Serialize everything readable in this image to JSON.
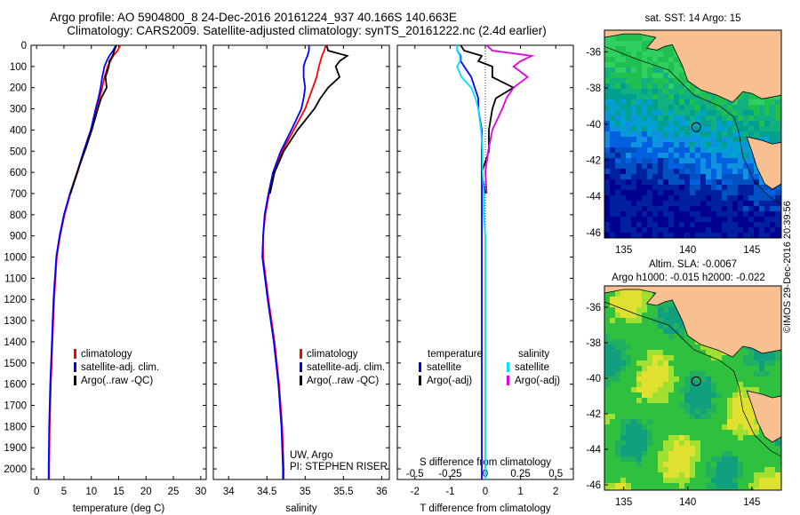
{
  "header": {
    "line1": "Argo profile: AO 5904800_8 24-Dec-2016 20161224_937 40.166S 140.663E",
    "line2": "Climatology: CARS2009. Satellite-adjusted climatology: synTS_20161222.nc (2.4d earlier)"
  },
  "watermark": "©IMOS 29-Dec-2016 20:39:56",
  "colors": {
    "climatology": "#ff0000",
    "satellite": "#0000ff",
    "argo": "#000000",
    "sal_satellite": "#00e0ff",
    "sal_argo": "#e000e0",
    "land": "#f8c090",
    "frame": "#000000"
  },
  "chart_data": [
    {
      "type": "line",
      "panel": "temperature",
      "xlabel": "temperature (deg C)",
      "ylabel": "",
      "xlim": [
        -1,
        31
      ],
      "ylim": [
        2050,
        0
      ],
      "xticks": [
        0,
        5,
        10,
        15,
        20,
        25,
        30
      ],
      "yticks": [
        0,
        100,
        200,
        300,
        400,
        500,
        600,
        700,
        800,
        900,
        1000,
        1100,
        1200,
        1300,
        1400,
        1500,
        1600,
        1700,
        1800,
        1900,
        2000
      ],
      "legend": [
        "climatology",
        "satellite-adj. clim.",
        "Argo(..raw -QC)"
      ],
      "depth": [
        0,
        25,
        50,
        75,
        100,
        150,
        200,
        250,
        300,
        400,
        500,
        600,
        700,
        800,
        900,
        1000,
        1200,
        1400,
        1600,
        1800,
        2000,
        2050
      ],
      "series": [
        {
          "name": "climatology",
          "values": [
            15.3,
            14.8,
            14.0,
            13.5,
            13.0,
            12.4,
            12.0,
            11.5,
            11.0,
            10.0,
            8.7,
            7.5,
            6.2,
            5.1,
            4.3,
            3.7,
            3.2,
            2.9,
            2.6,
            2.4,
            2.3,
            2.3
          ]
        },
        {
          "name": "satellite-adj. clim.",
          "values": [
            14.5,
            14.0,
            13.3,
            12.8,
            12.4,
            12.0,
            11.7,
            11.3,
            10.8,
            9.9,
            8.6,
            7.4,
            6.1,
            5.0,
            4.2,
            3.6,
            3.1,
            2.8,
            2.5,
            2.3,
            2.2,
            2.2
          ]
        },
        {
          "name": "Argo(..raw -QC)",
          "values": [
            14.6,
            14.2,
            13.9,
            13.3,
            13.2,
            12.6,
            12.8,
            11.8,
            11.2,
            10.1,
            8.8,
            7.4,
            6.2,
            null,
            null,
            null,
            null,
            null,
            null,
            null,
            null,
            null
          ]
        }
      ]
    },
    {
      "type": "line",
      "panel": "salinity",
      "xlabel": "salinity",
      "xlim": [
        33.8,
        36.1
      ],
      "ylim": [
        2050,
        0
      ],
      "xticks": [
        34,
        34.5,
        35,
        35.5,
        36
      ],
      "legend": [
        "climatology",
        "satellite-adj. clim.",
        "Argo(..raw -QC)"
      ],
      "annotation": [
        "UW, Argo",
        "PI: STEPHEN RISER"
      ],
      "depth": [
        0,
        25,
        50,
        75,
        100,
        150,
        200,
        250,
        300,
        400,
        500,
        600,
        700,
        800,
        900,
        1000,
        1200,
        1400,
        1600,
        1800,
        2000,
        2050
      ],
      "series": [
        {
          "name": "climatology",
          "values": [
            35.27,
            35.25,
            35.22,
            35.2,
            35.18,
            35.15,
            35.1,
            35.05,
            35.0,
            34.85,
            34.7,
            34.6,
            34.53,
            34.48,
            34.45,
            34.45,
            34.52,
            34.6,
            34.66,
            34.7,
            34.72,
            34.72
          ]
        },
        {
          "name": "satellite-adj. clim.",
          "values": [
            35.05,
            35.05,
            35.03,
            35.0,
            34.98,
            34.98,
            35.0,
            34.98,
            34.95,
            34.82,
            34.68,
            34.58,
            34.52,
            34.47,
            34.45,
            34.44,
            34.51,
            34.59,
            34.65,
            34.69,
            34.71,
            34.71
          ]
        },
        {
          "name": "Argo(..raw -QC)",
          "values": [
            35.28,
            35.3,
            35.55,
            35.45,
            35.4,
            35.45,
            35.3,
            35.2,
            35.12,
            34.9,
            34.72,
            34.6,
            34.54,
            null,
            null,
            null,
            null,
            null,
            null,
            null,
            null,
            null
          ]
        }
      ]
    },
    {
      "type": "line",
      "panel": "difference",
      "xlabel": "T difference from climatology",
      "x2label": "S difference from climatology",
      "xlim": [
        -2.5,
        2.5
      ],
      "x2lim": [
        -0.625,
        0.625
      ],
      "ylim": [
        2050,
        0
      ],
      "xticks": [
        -2,
        -1,
        0,
        1,
        2
      ],
      "x2ticks": [
        -0.5,
        -0.25,
        0,
        0.25,
        0.5
      ],
      "legend_headers": [
        "temperature",
        "salinity"
      ],
      "legend": [
        "satellite",
        "Argo(-adj)",
        "satellite",
        "Argo(-adj)"
      ],
      "depth": [
        0,
        25,
        50,
        75,
        100,
        150,
        200,
        250,
        300,
        400,
        500,
        600,
        700,
        800,
        900,
        1000,
        1200,
        1400,
        1600,
        1800,
        2000,
        2050
      ],
      "series": [
        {
          "name": "temperature satellite",
          "values": [
            -0.8,
            -0.8,
            -0.7,
            -0.7,
            -0.6,
            -0.4,
            -0.3,
            -0.2,
            -0.2,
            -0.1,
            -0.1,
            -0.1,
            -0.1,
            -0.1,
            -0.1,
            -0.1,
            -0.1,
            -0.1,
            -0.1,
            -0.1,
            -0.1,
            -0.1
          ]
        },
        {
          "name": "temperature Argo(-adj)",
          "values": [
            -0.7,
            -0.6,
            -0.1,
            -0.2,
            0.2,
            0.2,
            0.8,
            0.3,
            0.2,
            0.1,
            0.1,
            -0.1,
            0.0,
            null,
            null,
            null,
            null,
            null,
            null,
            null,
            null,
            null
          ]
        },
        {
          "name": "salinity satellite",
          "values": [
            -0.2,
            -0.2,
            -0.18,
            -0.18,
            -0.2,
            -0.17,
            -0.1,
            -0.07,
            -0.05,
            -0.03,
            -0.02,
            -0.02,
            -0.01,
            -0.01,
            0.0,
            0.0,
            0.0,
            0.0,
            0.0,
            0.0,
            0.0,
            0.0
          ]
        },
        {
          "name": "salinity Argo(-adj)",
          "values": [
            0.01,
            0.05,
            0.33,
            0.25,
            0.2,
            0.3,
            0.2,
            0.15,
            0.12,
            0.05,
            0.02,
            0.0,
            0.01,
            null,
            null,
            null,
            null,
            null,
            null,
            null,
            null,
            null
          ]
        }
      ]
    },
    {
      "type": "heatmap",
      "panel": "map-sst",
      "title": "sat. SST: 14  Argo: 15",
      "xlim": [
        133.5,
        147.3
      ],
      "ylim": [
        -46.3,
        -34.8
      ],
      "xticks": [
        135,
        140,
        145
      ],
      "yticks": [
        -36,
        -38,
        -40,
        -42,
        -44,
        -46
      ],
      "marker": {
        "lon": 140.663,
        "lat": -40.166
      }
    },
    {
      "type": "heatmap",
      "panel": "map-sla",
      "title": "Altim. SLA: -0.0067",
      "subtitle": "Argo h1000: -0.015 h2000: -0.022",
      "xlim": [
        133.5,
        147.3
      ],
      "ylim": [
        -46.3,
        -34.8
      ],
      "xticks": [
        135,
        140,
        145
      ],
      "yticks": [
        -36,
        -38,
        -40,
        -42,
        -44,
        -46
      ],
      "marker": {
        "lon": 140.663,
        "lat": -40.166
      }
    }
  ]
}
